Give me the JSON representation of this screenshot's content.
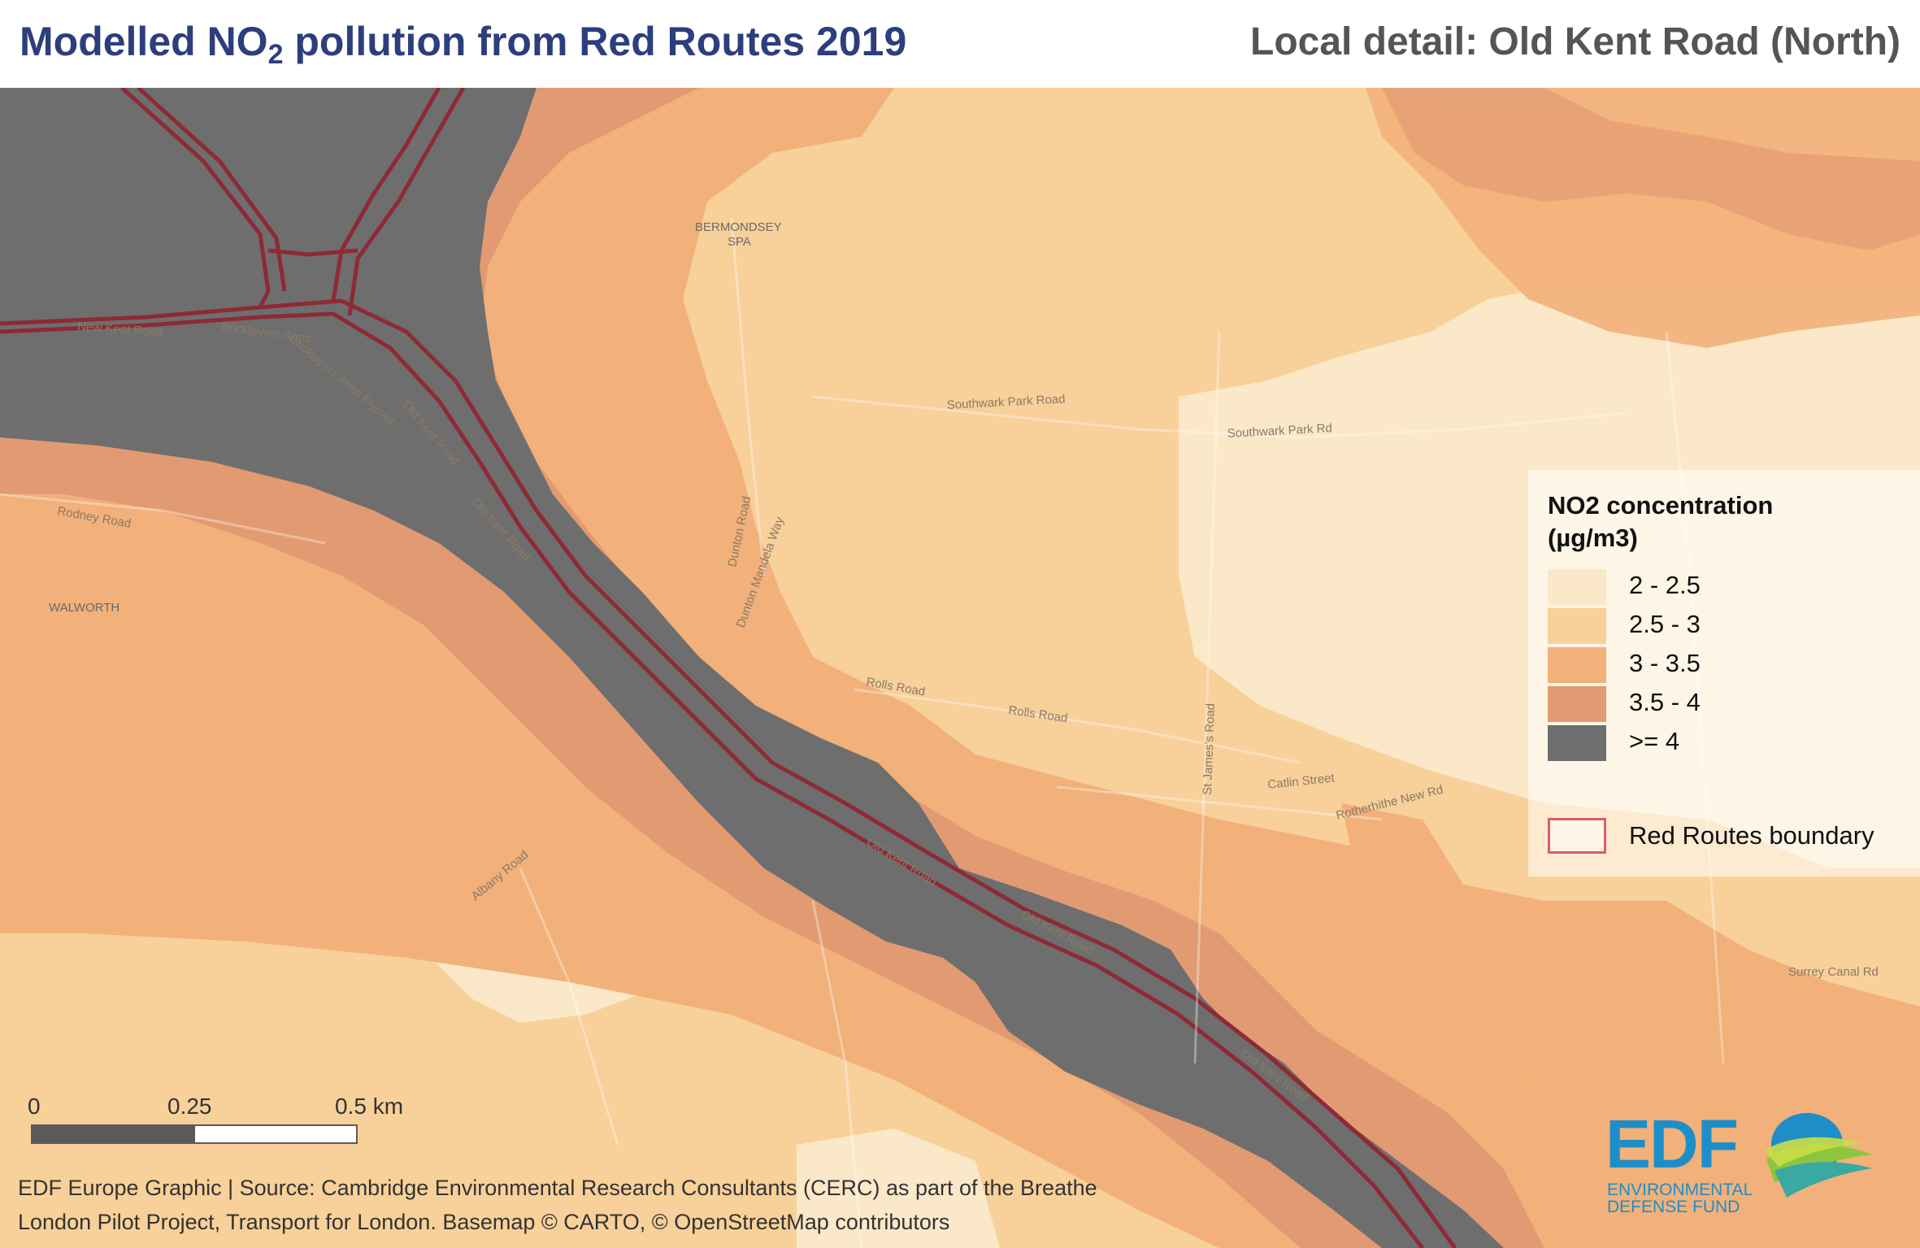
{
  "header": {
    "title_main": "Modelled NO",
    "title_sub": "2",
    "title_rest": " pollution from Red Routes 2019",
    "subtitle": "Local detail: Old Kent Road (North)"
  },
  "legend": {
    "title_line1": "NO2 concentration",
    "title_line2": "(µg/m3)",
    "items": [
      {
        "label": "2 - 2.5",
        "color": "#fbe8c8"
      },
      {
        "label": "2.5 - 3",
        "color": "#f8d09a"
      },
      {
        "label": "3 - 3.5",
        "color": "#f2b07a"
      },
      {
        "label": "3.5 - 4",
        "color": "#e29a72"
      },
      {
        "label": ">= 4",
        "color": "#6e6e6e"
      }
    ],
    "boundary_label": "Red Routes boundary",
    "boundary_color": "#e05c6a"
  },
  "scalebar": {
    "tick_0": "0",
    "tick_1": "0.25",
    "tick_2": "0.5 km"
  },
  "map": {
    "area_labels": {
      "bermondsey_1": "BERMONDSEY",
      "bermondsey_2": "SPA",
      "walworth": "WALWORTH"
    },
    "street_labels": {
      "new_kent_road": "New Kent Road",
      "bricklayers_arms": "Bricklayers Arms",
      "bricklayers_flyover": "Bricklayers Arms Flyover",
      "old_kent_road_1": "Old Kent Road",
      "old_kent_road_2": "Old Kent Road",
      "old_kent_road_3": "Old Kent Road",
      "old_kent_road_4": "Old Kent Road",
      "old_kent_road_5": "Old Kent Road",
      "southwark_park_rd_1": "Southwark Park Road",
      "southwark_park_rd_2": "Southwark Park Rd",
      "rolls_road_1": "Rolls Road",
      "rolls_road_2": "Rolls Road",
      "dunton_road": "Dunton Road",
      "catlin_street": "Catlin Street",
      "albany_road": "Albany Road",
      "st_james_rd": "St James's Road",
      "rotherhithe_new_rd": "Rotherhithe New Rd",
      "rodney_road": "Rodney Road",
      "surrey_canal_rd": "Surrey Canal Rd",
      "mandela_way": "Dunton Mandela Way"
    }
  },
  "source": {
    "line1": "EDF Europe Graphic | Source: Cambridge Environmental Research Consultants (CERC) as part of the Breathe",
    "line2": "London Pilot Project, Transport for London. Basemap © CARTO, © OpenStreetMap contributors"
  },
  "logo": {
    "text": "EDF",
    "sub1": "ENVIRONMENTAL",
    "sub2": "DEFENSE FUND"
  }
}
